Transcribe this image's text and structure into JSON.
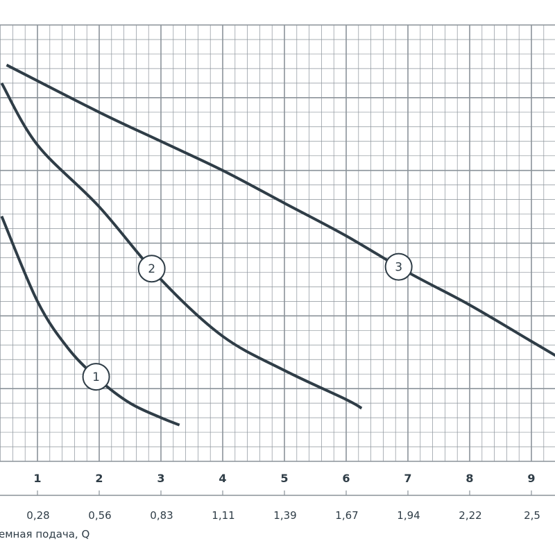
{
  "chart_data": {
    "type": "line",
    "xlabel": "емная подача, Q",
    "x_ticks_primary": [
      "1",
      "2",
      "3",
      "4",
      "5",
      "6",
      "7",
      "8",
      "9"
    ],
    "x_ticks_secondary": [
      "0,28",
      "0,56",
      "0,83",
      "1,11",
      "1,39",
      "1,67",
      "1,94",
      "2,22",
      "2,5"
    ],
    "xlim": [
      0.42,
      9.4
    ],
    "ylim": [
      0,
      6
    ],
    "grid": true,
    "series": [
      {
        "name": "1",
        "label": "1",
        "x": [
          0.42,
          1.0,
          1.5,
          2.0,
          2.5,
          3.0,
          3.3
        ],
        "y": [
          3.37,
          2.2,
          1.55,
          1.12,
          0.8,
          0.6,
          0.5
        ]
      },
      {
        "name": "2",
        "label": "2",
        "x": [
          0.42,
          1.0,
          2.0,
          3.0,
          4.0,
          5.0,
          6.0,
          6.25
        ],
        "y": [
          5.2,
          4.35,
          3.5,
          2.5,
          1.72,
          1.25,
          0.85,
          0.73
        ]
      },
      {
        "name": "3",
        "label": "3",
        "x": [
          0.5,
          2.0,
          3.0,
          4.0,
          5.0,
          6.0,
          7.0,
          8.0,
          9.0,
          9.4
        ],
        "y": [
          5.45,
          4.8,
          4.4,
          4.0,
          3.55,
          3.1,
          2.6,
          2.15,
          1.65,
          1.45
        ]
      }
    ],
    "label_positions": [
      {
        "series": "1",
        "x": 1.95
      },
      {
        "series": "2",
        "x": 2.85
      },
      {
        "series": "3",
        "x": 6.85
      }
    ],
    "colors": {
      "grid": "#8a9299",
      "curve": "#2f3d47",
      "text": "#2f3d47"
    }
  }
}
